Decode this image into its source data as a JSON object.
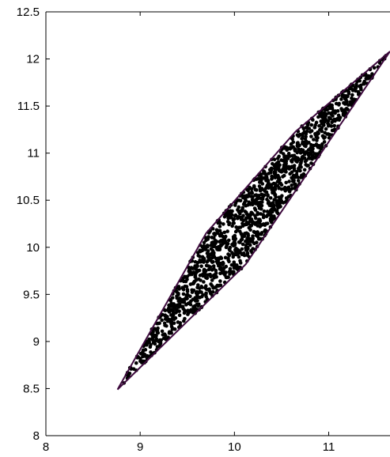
{
  "chart_data": {
    "type": "scatter",
    "title": "",
    "xlabel": "",
    "ylabel": "",
    "xlim": [
      8,
      11.65
    ],
    "ylim": [
      8,
      12.5
    ],
    "x_ticks": [
      8,
      9,
      10,
      11
    ],
    "x_tick_labels": [
      "8",
      "9",
      "10",
      "11"
    ],
    "y_ticks": [
      8,
      8.5,
      9,
      9.5,
      10,
      10.5,
      11,
      11.5,
      12,
      12.5
    ],
    "y_tick_labels": [
      "8",
      "8.5",
      "9",
      "9.5",
      "10",
      "10.5",
      "11",
      "11.5",
      "12",
      "12.5"
    ],
    "grid": false,
    "box": "left-bottom-top",
    "series": [
      {
        "kind": "polygon",
        "color": "#3d0a3d",
        "x": [
          8.76,
          9.7,
          10.65,
          11.65,
          10.12
        ],
        "y": [
          8.49,
          10.15,
          11.23,
          12.08,
          9.82
        ]
      },
      {
        "kind": "points",
        "color": "#000000",
        "count": 1500,
        "region": "polygon",
        "x_range": [
          8.77,
          11.65
        ],
        "y_range": [
          8.5,
          12.08
        ]
      }
    ]
  }
}
